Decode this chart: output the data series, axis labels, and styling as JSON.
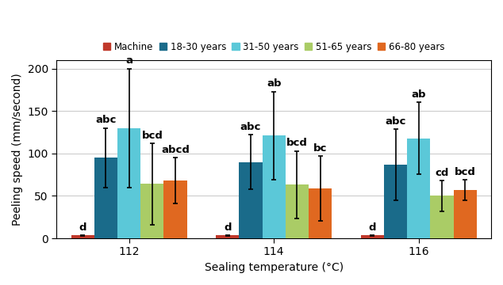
{
  "categories": [
    "112",
    "114",
    "116"
  ],
  "series": [
    {
      "label": "Machine",
      "color": "#C0392B",
      "values": [
        3.5,
        3.5,
        3.5
      ],
      "errors": [
        0.5,
        0.5,
        0.5
      ]
    },
    {
      "label": "18-30 years",
      "color": "#1A6B8A",
      "values": [
        95,
        90,
        87
      ],
      "errors": [
        35,
        32,
        42
      ]
    },
    {
      "label": "31-50 years",
      "color": "#5BC8D8",
      "values": [
        130,
        121,
        118
      ],
      "errors": [
        70,
        52,
        42
      ]
    },
    {
      "label": "51-65 years",
      "color": "#AACC66",
      "values": [
        64,
        63,
        50
      ],
      "errors": [
        48,
        40,
        18
      ]
    },
    {
      "label": "66-80 years",
      "color": "#E06820",
      "values": [
        68,
        59,
        57
      ],
      "errors": [
        27,
        38,
        12
      ]
    }
  ],
  "bar_width": 0.16,
  "ylabel": "Peeling speed (mm/second)",
  "xlabel": "Sealing temperature (°C)",
  "ylim": [
    0,
    210
  ],
  "yticks": [
    0,
    50,
    100,
    150,
    200
  ],
  "annotations": {
    "112": [
      "d",
      "abc",
      "a",
      "bcd",
      "abcd"
    ],
    "114": [
      "d",
      "abc",
      "ab",
      "bcd",
      "bc"
    ],
    "116": [
      "d",
      "abc",
      "ab",
      "cd",
      "bcd"
    ]
  },
  "background_color": "#ffffff",
  "grid_color": "#cccccc",
  "legend_fontsize": 8.5,
  "axis_fontsize": 10,
  "tick_fontsize": 10,
  "ann_fontsize": 9.5
}
